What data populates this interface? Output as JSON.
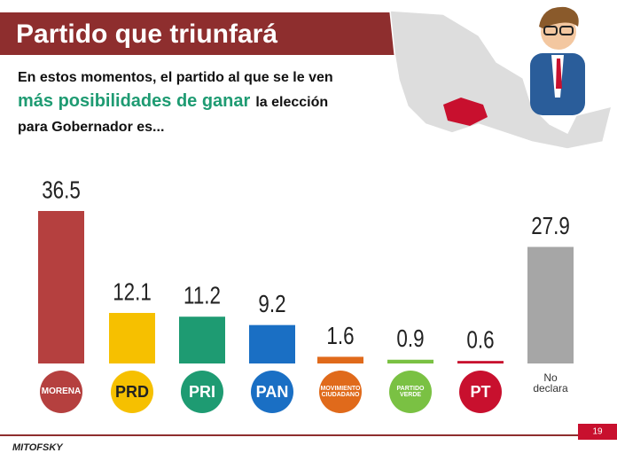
{
  "chart_data": {
    "type": "bar",
    "title": "Partido que triunfará",
    "subtitle_lines": [
      [
        "En estos momentos, el partido al que se le ven"
      ],
      [
        "más posibilidades de ganar",
        "la elección"
      ],
      [
        "para Gobernador es..."
      ]
    ],
    "categories": [
      "MORENA",
      "PRD",
      "PRI",
      "PAN",
      "MOVIMIENTO CIUDADANO",
      "PARTIDO VERDE",
      "PT",
      "No declara"
    ],
    "values": [
      36.5,
      12.1,
      11.2,
      9.2,
      1.6,
      0.9,
      0.6,
      27.9
    ],
    "colors": [
      "#b5403f",
      "#f6c000",
      "#1e9b72",
      "#1a6fc4",
      "#e06a1b",
      "#7ac143",
      "#c8102e",
      "#a6a6a6"
    ]
  },
  "footer": {
    "logo": "MITOFSKY",
    "page_number": "19"
  }
}
